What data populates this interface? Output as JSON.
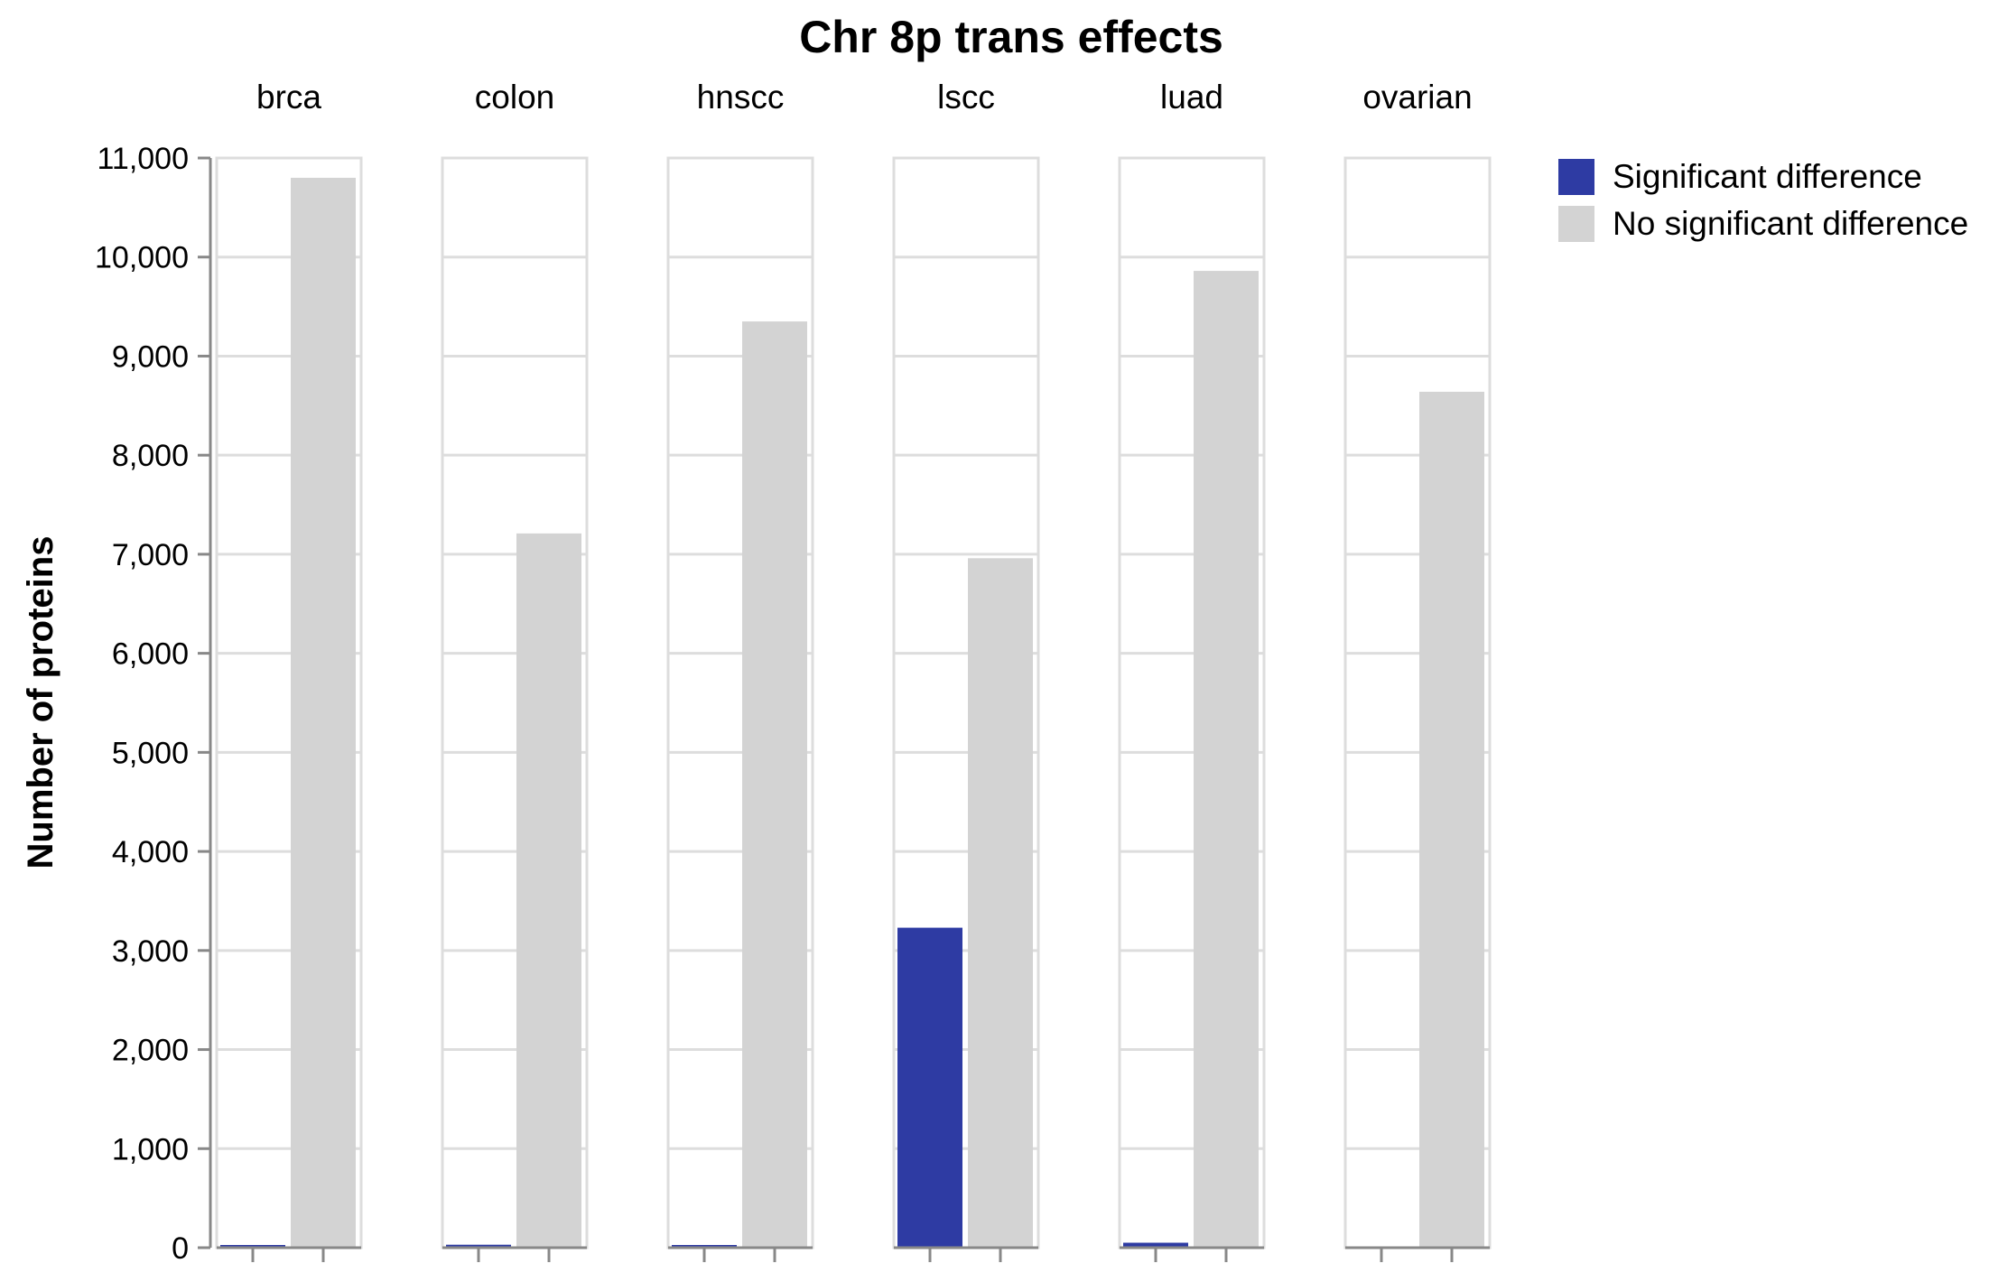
{
  "chart_data": {
    "type": "bar",
    "title": "Chr 8p trans effects",
    "xlabel": "",
    "ylabel": "Number of proteins",
    "ylim": [
      0,
      11000
    ],
    "yticks": [
      0,
      1000,
      2000,
      3000,
      4000,
      5000,
      6000,
      7000,
      8000,
      9000,
      10000,
      11000
    ],
    "ytick_labels": [
      "0",
      "1,000",
      "2,000",
      "3,000",
      "4,000",
      "5,000",
      "6,000",
      "7,000",
      "8,000",
      "9,000",
      "10,000",
      "11,000"
    ],
    "categories": [
      "brca",
      "colon",
      "hnscc",
      "lscc",
      "luad",
      "ovarian"
    ],
    "series": [
      {
        "name": "Significant difference",
        "color": "#2e3ba3",
        "values": [
          5,
          30,
          10,
          3230,
          50,
          0
        ]
      },
      {
        "name": "No significant difference",
        "color": "#d3d3d3",
        "values": [
          10800,
          7210,
          9350,
          6960,
          9860,
          8640
        ]
      }
    ],
    "grid": true,
    "legend_position": "top-right"
  }
}
